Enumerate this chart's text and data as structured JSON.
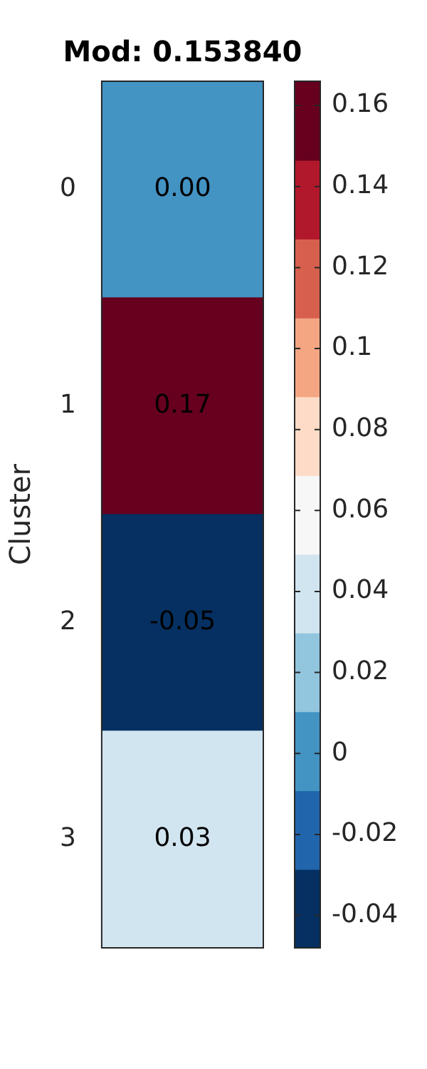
{
  "chart_data": {
    "type": "heatmap",
    "title": "Mod: 0.153840",
    "ylabel": "Cluster",
    "categories": [
      null
    ],
    "y_categories": [
      "0",
      "1",
      "2",
      "3"
    ],
    "cells": [
      [
        0.0
      ],
      [
        0.166
      ],
      [
        -0.048
      ],
      [
        0.03
      ]
    ],
    "cell_labels": [
      [
        "0.00"
      ],
      [
        "0.17"
      ],
      [
        "-0.05"
      ],
      [
        "0.03"
      ]
    ],
    "clim": [
      -0.048,
      0.166
    ],
    "cticks": [
      -0.04,
      -0.02,
      0,
      0.02,
      0.04,
      0.06,
      0.08,
      0.1,
      0.12,
      0.14,
      0.16
    ],
    "colors": [
      "#053061",
      "#2166ac",
      "#4393c3",
      "#92c5de",
      "#d1e5f0",
      "#f7f7f7",
      "#fddbc7",
      "#f4a582",
      "#d6604d",
      "#b2182b",
      "#67001f"
    ]
  }
}
